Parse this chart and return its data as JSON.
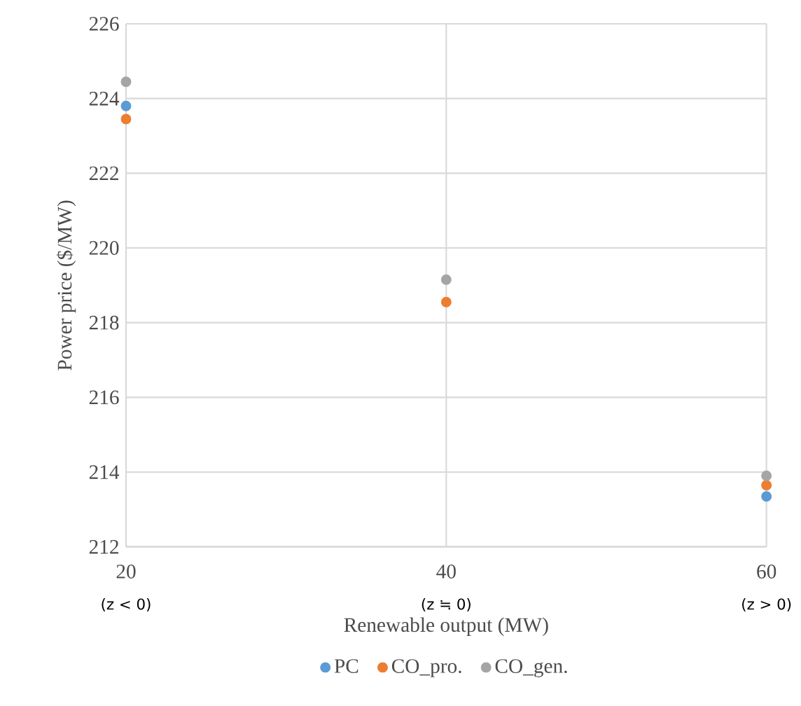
{
  "chart_data": {
    "type": "scatter",
    "xlabel": "Renewable output (MW)",
    "ylabel": "Power price ($/MW)",
    "x": [
      20,
      40,
      60
    ],
    "series": [
      {
        "name": "PC",
        "color": "#5b9bd5",
        "values": [
          223.8,
          null,
          213.35
        ]
      },
      {
        "name": "CO_pro.",
        "color": "#ed7d31",
        "values": [
          223.45,
          218.55,
          213.65
        ]
      },
      {
        "name": "CO_gen.",
        "color": "#a5a5a5",
        "values": [
          224.45,
          219.15,
          213.9
        ]
      }
    ],
    "xlim": [
      20,
      60
    ],
    "ylim": [
      212,
      226
    ],
    "xticks": [
      20,
      40,
      60
    ],
    "yticks": [
      212,
      214,
      216,
      218,
      220,
      222,
      224,
      226
    ],
    "annotations": [
      "(z < 0)",
      "(z ≒ 0)",
      "(z > 0)"
    ],
    "grid": true,
    "legend": "bottom"
  }
}
